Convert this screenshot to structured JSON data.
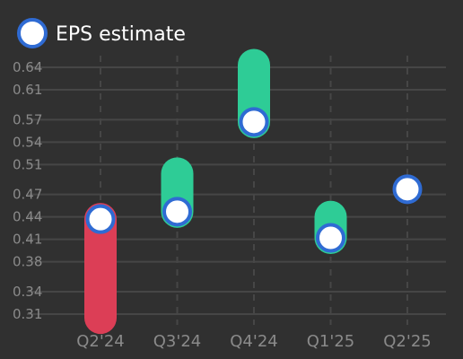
{
  "chart_data": {
    "type": "range-dot",
    "legend": {
      "label": "EPS estimate",
      "position": "top-left",
      "marker_fill": "#ffffff",
      "marker_stroke": "#2f6bd3"
    },
    "categories": [
      "Q2'24",
      "Q3'24",
      "Q4'24",
      "Q1'25",
      "Q2'25"
    ],
    "y_ticks": [
      "0.31",
      "0.34",
      "0.38",
      "0.41",
      "0.44",
      "0.47",
      "0.51",
      "0.54",
      "0.57",
      "0.61",
      "0.64"
    ],
    "ylim": [
      0.305,
      0.655
    ],
    "grid": true,
    "series": [
      {
        "name": "EPS estimate",
        "values": [
          0.437,
          0.447,
          0.567,
          0.412,
          0.477
        ]
      }
    ],
    "actuals": [
      0.305,
      0.498,
      0.643,
      0.44,
      null
    ],
    "colors": {
      "beat": "#2ecc96",
      "miss": "#dc3e56",
      "grid": "#464646",
      "marker_fill": "#ffffff",
      "marker_stroke": "#2f6bd3",
      "text": "#8a8a8a"
    }
  }
}
